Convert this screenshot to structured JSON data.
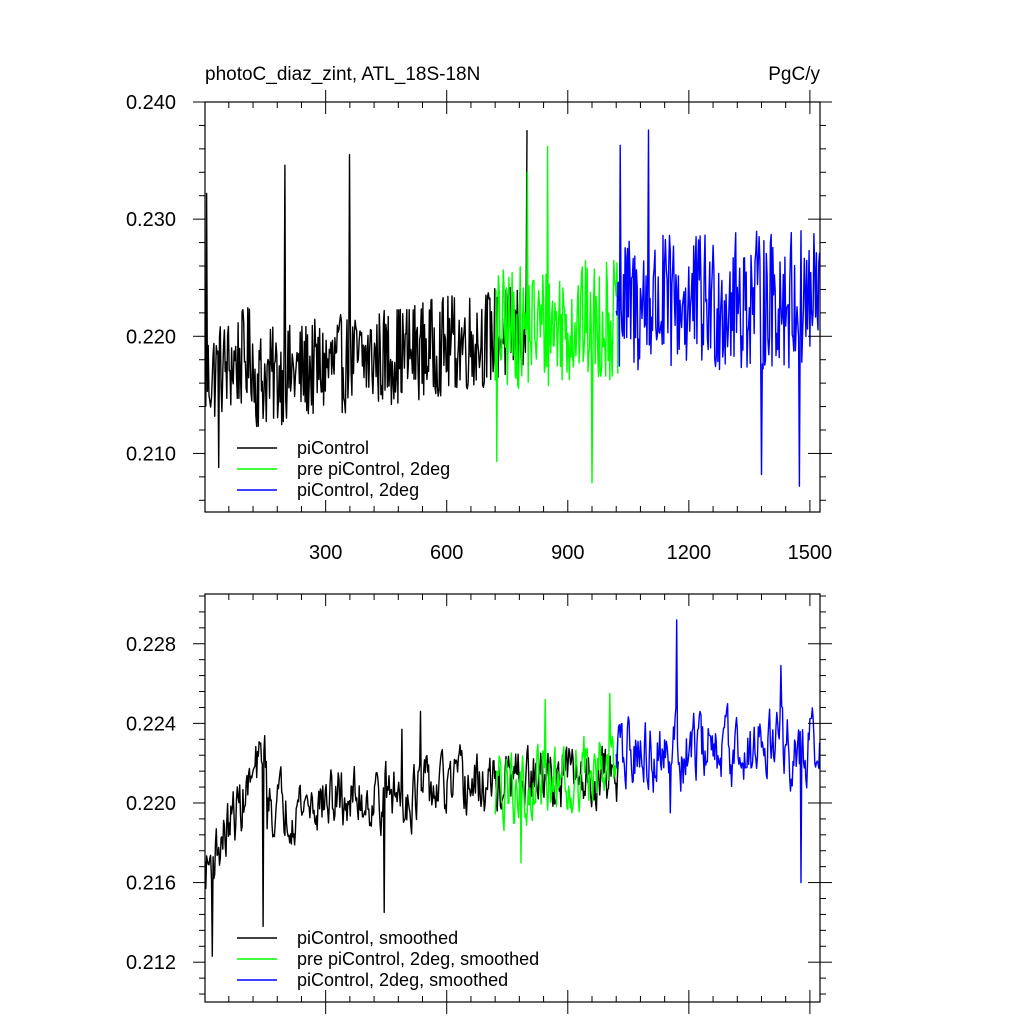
{
  "chart_data": [
    {
      "type": "line",
      "title": "photoC_diaz_zint, ATL_18S-18N",
      "units": "PgC/y",
      "xlim": [
        1,
        1525
      ],
      "ylim": [
        0.205,
        0.24
      ],
      "x_ticks": [
        300,
        600,
        900,
        1200,
        1500
      ],
      "x_tick_labels": [
        "300",
        "600",
        "900",
        "1200",
        "1500"
      ],
      "y_ticks": [
        0.21,
        0.22,
        0.23,
        0.24
      ],
      "y_tick_labels": [
        "0.210",
        "0.220",
        "0.230",
        "0.240"
      ],
      "legend_position": "bottom-left",
      "series": [
        {
          "name": "piControl",
          "color": "#000000",
          "x_start": 1,
          "x_end": 800,
          "base": 0.2165,
          "end": 0.2205,
          "amp": 0.0085,
          "mid": 0.2155,
          "spikes": [
            [
              5,
              0.2322
            ],
            [
              200,
              0.2346
            ],
            [
              360,
              0.2355
            ],
            [
              800,
              0.2376
            ],
            [
              35,
              0.2088
            ]
          ]
        },
        {
          "name": "pre piControl, 2deg",
          "color": "#00ff00",
          "x_start": 720,
          "x_end": 1025,
          "base": 0.2205,
          "end": 0.2215,
          "amp": 0.0105,
          "spikes": [
            [
              850,
              0.2362
            ],
            [
              960,
              0.2075
            ],
            [
              725,
              0.2093
            ],
            [
              800,
              0.234
            ]
          ]
        },
        {
          "name": "piControl, 2deg",
          "color": "#0000ff",
          "x_start": 1020,
          "x_end": 1525,
          "base": 0.2225,
          "end": 0.2232,
          "amp": 0.012,
          "spikes": [
            [
              1100,
              0.2376
            ],
            [
              1380,
              0.2082
            ],
            [
              1475,
              0.2072
            ],
            [
              1030,
              0.2363
            ]
          ]
        }
      ]
    },
    {
      "type": "line",
      "xlim": [
        1,
        1525
      ],
      "ylim": [
        0.21,
        0.2305
      ],
      "x_ticks": [
        300,
        600,
        900,
        1200,
        1500
      ],
      "y_ticks": [
        0.212,
        0.216,
        0.22,
        0.224,
        0.228
      ],
      "y_tick_labels": [
        "0.212",
        "0.216",
        "0.220",
        "0.224",
        "0.228"
      ],
      "legend_position": "bottom-left",
      "series": [
        {
          "name": "piControl, smoothed",
          "color": "#000000",
          "x_start": 1,
          "x_end": 1025,
          "base": 0.2165,
          "end": 0.2215,
          "amp": 0.0034,
          "mid": 0.2195,
          "spikes": [
            [
              20,
              0.2123
            ],
            [
              145,
              0.2138
            ],
            [
              445,
              0.2145
            ],
            [
              490,
              0.2237
            ],
            [
              535,
              0.2246
            ]
          ]
        },
        {
          "name": "pre piControl, 2deg, smoothed",
          "color": "#00ff00",
          "x_start": 720,
          "x_end": 1025,
          "base": 0.2205,
          "end": 0.222,
          "amp": 0.0038,
          "spikes": [
            [
              785,
              0.217
            ],
            [
              845,
              0.2252
            ],
            [
              1005,
              0.2255
            ]
          ]
        },
        {
          "name": "piControl, 2deg, smoothed",
          "color": "#0000ff",
          "x_start": 1020,
          "x_end": 1525,
          "base": 0.2225,
          "end": 0.2228,
          "amp": 0.004,
          "spikes": [
            [
              1170,
              0.2292
            ],
            [
              1155,
              0.2195
            ],
            [
              1478,
              0.216
            ],
            [
              1428,
              0.2269
            ]
          ]
        }
      ]
    }
  ]
}
